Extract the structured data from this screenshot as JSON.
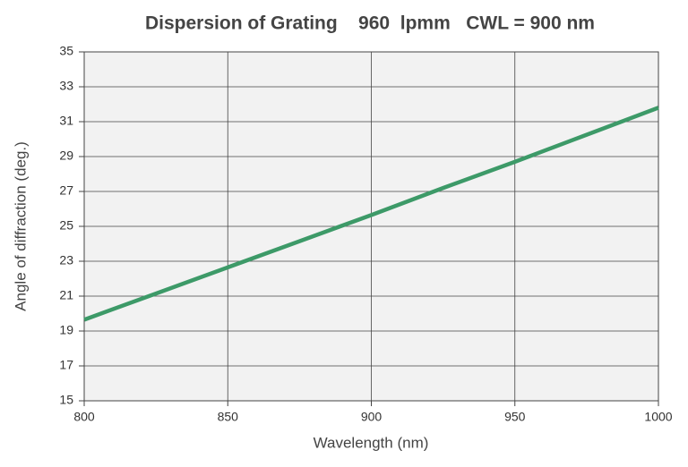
{
  "chart_data": {
    "type": "line",
    "title": "Dispersion of Grating    960  lpmm   CWL = 900 nm",
    "x_label": "Wavelength (nm)",
    "y_label": "Angle of diffraction (deg.)",
    "x": [
      800,
      825,
      850,
      875,
      900,
      925,
      950,
      975,
      1000
    ],
    "series": [
      {
        "color": "#3d9a68",
        "values": [
          19.65,
          21.15,
          22.65,
          24.15,
          25.65,
          27.2,
          28.7,
          30.25,
          31.8
        ]
      }
    ],
    "xlim": [
      800,
      1000
    ],
    "xticks": [
      800,
      850,
      900,
      950,
      1000
    ],
    "ylim": [
      15,
      35
    ],
    "yticks": [
      15,
      17,
      19,
      21,
      23,
      25,
      27,
      29,
      31,
      33,
      35
    ],
    "grid": true
  }
}
